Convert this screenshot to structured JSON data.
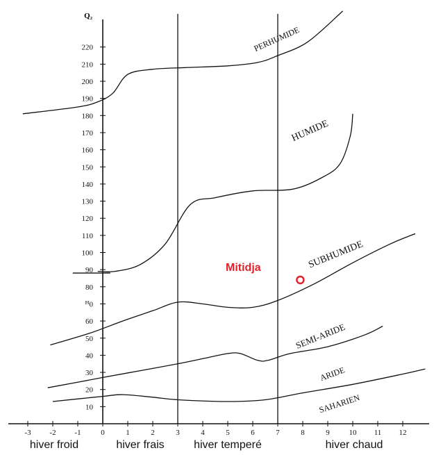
{
  "chart_data": {
    "type": "line",
    "title": "",
    "ylabel": "Q₂",
    "xlabel": "",
    "xlim": [
      -3.3,
      13.3
    ],
    "ylim": [
      0,
      233
    ],
    "y_ticks": [
      10,
      20,
      30,
      40,
      50,
      60,
      70,
      80,
      90,
      100,
      110,
      120,
      130,
      140,
      150,
      160,
      170,
      180,
      190,
      200,
      210,
      220
    ],
    "y_tick_labels": [
      "10",
      "20",
      "30",
      "40",
      "50",
      "60",
      "ꟸ0",
      "80",
      "90",
      "100",
      "110",
      "120",
      "130",
      "140",
      "150",
      "160",
      "170",
      "180",
      "190",
      "200",
      "210",
      "220"
    ],
    "x_ticks": [
      -3,
      -2,
      -1,
      0,
      1,
      2,
      3,
      4,
      5,
      6,
      7,
      8,
      9,
      10,
      11,
      12
    ],
    "x_tick_labels": [
      "-3",
      "-2",
      "-1",
      "0",
      "1",
      "2",
      "3",
      "4",
      "5",
      "6",
      "7",
      "8",
      "9",
      "10",
      "11",
      "12"
    ],
    "grid": false,
    "vertical_lines": [
      3,
      7
    ],
    "series": [
      {
        "name": "PERHUMIDE",
        "points": [
          [
            -3.2,
            181
          ],
          [
            -1,
            185
          ],
          [
            -0.2,
            188
          ],
          [
            0.4,
            193
          ],
          [
            1,
            204
          ],
          [
            2,
            207
          ],
          [
            3.3,
            208
          ],
          [
            5,
            209
          ],
          [
            6.2,
            211
          ],
          [
            7,
            215
          ],
          [
            8.2,
            223
          ],
          [
            9.6,
            241
          ]
        ]
      },
      {
        "name": "HUMIDE",
        "points": [
          [
            -0.2,
            89
          ],
          [
            0.5,
            89
          ],
          [
            1.5,
            93
          ],
          [
            2.5,
            105
          ],
          [
            3.5,
            128
          ],
          [
            4.5,
            132
          ],
          [
            6,
            136
          ],
          [
            7.6,
            137
          ],
          [
            8.8,
            144
          ],
          [
            9.5,
            152
          ],
          [
            9.9,
            168
          ],
          [
            10,
            181
          ]
        ]
      },
      {
        "name": "SUBHUMIDE",
        "points": [
          [
            -1.2,
            88
          ],
          [
            0.3,
            88
          ],
          [
            -2.1,
            46
          ],
          [
            -0.5,
            53
          ],
          [
            0.8,
            60
          ],
          [
            2,
            66
          ],
          [
            3,
            71
          ],
          [
            4,
            70
          ],
          [
            5,
            68
          ],
          [
            6,
            68
          ],
          [
            7,
            72
          ],
          [
            8.5,
            82
          ],
          [
            10,
            94
          ],
          [
            11.5,
            105
          ],
          [
            12.5,
            111
          ]
        ]
      },
      {
        "name": "SEMI-ARIDE",
        "points": [
          [
            -2.2,
            21
          ],
          [
            0,
            27
          ],
          [
            1.5,
            31
          ],
          [
            3,
            35
          ],
          [
            4,
            38
          ],
          [
            5,
            41
          ],
          [
            5.5,
            41
          ],
          [
            6.2,
            37
          ],
          [
            6.6,
            37
          ],
          [
            7.5,
            41
          ],
          [
            9,
            45
          ],
          [
            10.5,
            52
          ],
          [
            11.2,
            57
          ]
        ]
      },
      {
        "name": "ARIDE",
        "points": [
          [
            -2,
            13
          ],
          [
            0,
            16
          ],
          [
            0.8,
            17
          ],
          [
            2,
            15.5
          ],
          [
            3,
            14
          ],
          [
            5,
            13
          ],
          [
            6.5,
            14
          ],
          [
            8,
            18
          ],
          [
            10,
            23
          ],
          [
            12,
            29
          ],
          [
            12.9,
            32
          ]
        ]
      },
      {
        "name": "SAHARIEN",
        "points": []
      }
    ],
    "curve_labels": [
      "PERHUMIDE",
      "HUMIDE",
      "SUBHUMIDE",
      "SEMI-ARIDE",
      "ARIDE",
      "SAHARIEN"
    ],
    "bottom_labels": [
      "hiver froid",
      "hiver frais",
      "hiver temperé",
      "hiver chaud"
    ],
    "highlight_point": {
      "label": "Mitidja",
      "x": 7.9,
      "y": 84,
      "color": "#e8202a"
    }
  }
}
